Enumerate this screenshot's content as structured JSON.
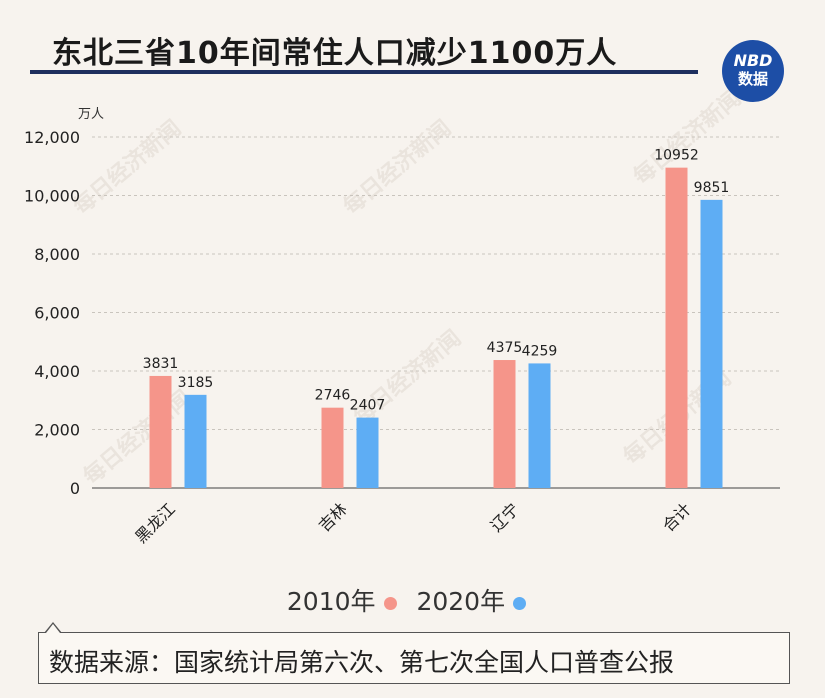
{
  "title": "东北三省10年间常住人口减少1100万人",
  "logo": {
    "line1": "NBD",
    "line2": "数据",
    "color": "#1d4ea6"
  },
  "watermark": "每日经济新闻",
  "source": "数据来源：国家统计局第六次、第七次全国人口普查公报",
  "chart_data": {
    "type": "bar",
    "ylabel": "万人",
    "ylim": [
      0,
      12000
    ],
    "yticks": [
      0,
      2000,
      4000,
      6000,
      8000,
      10000,
      12000
    ],
    "ytick_labels": [
      "0",
      "2,000",
      "4,000",
      "6,000",
      "8,000",
      "10,000",
      "12,000"
    ],
    "categories": [
      "黑龙江",
      "吉林",
      "辽宁",
      "合计"
    ],
    "series": [
      {
        "name": "2010年",
        "color": "#f5958a",
        "values": [
          3831,
          2746,
          4375,
          10952
        ]
      },
      {
        "name": "2020年",
        "color": "#5eadf4",
        "values": [
          3185,
          2407,
          4259,
          9851
        ]
      }
    ],
    "legend": "bottom",
    "grid": true
  }
}
